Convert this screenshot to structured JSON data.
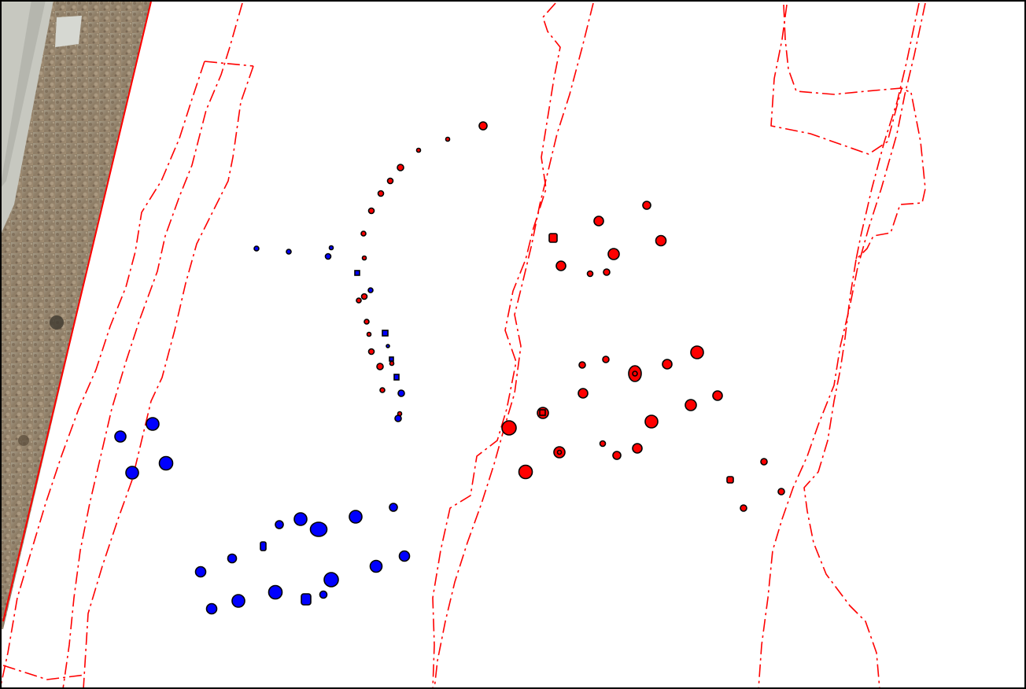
{
  "map": {
    "basemap": "aerial-imagery",
    "colors": {
      "background": "#ffffff",
      "boundary_line": "#ff0000",
      "feature_group_a": "#ff0000",
      "feature_group_b": "#0000ff",
      "feature_outline": "#000000",
      "frame": "#000000"
    },
    "legend": null,
    "labels": []
  }
}
